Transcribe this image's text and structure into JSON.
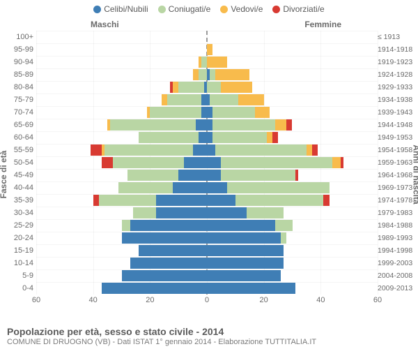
{
  "legend": [
    {
      "label": "Celibi/Nubili",
      "color": "#3f7eb5"
    },
    {
      "label": "Coniugati/e",
      "color": "#b9d6a4"
    },
    {
      "label": "Vedovi/e",
      "color": "#f8bb4c"
    },
    {
      "label": "Divorziati/e",
      "color": "#d83a32"
    }
  ],
  "side_labels": {
    "male": "Maschi",
    "female": "Femmine"
  },
  "axis_titles": {
    "left": "Fasce di età",
    "right": "Anni di nascita"
  },
  "x": {
    "max": 60,
    "ticks": [
      60,
      40,
      20,
      0,
      20,
      40,
      60
    ]
  },
  "rows": [
    {
      "age": "100+",
      "birth": "≤ 1913",
      "m": {
        "c": 0,
        "co": 0,
        "v": 0,
        "d": 0
      },
      "f": {
        "c": 0,
        "co": 0,
        "v": 0,
        "d": 0
      }
    },
    {
      "age": "95-99",
      "birth": "1914-1918",
      "m": {
        "c": 0,
        "co": 0,
        "v": 0,
        "d": 0
      },
      "f": {
        "c": 0,
        "co": 0,
        "v": 2,
        "d": 0
      }
    },
    {
      "age": "90-94",
      "birth": "1919-1923",
      "m": {
        "c": 0,
        "co": 2,
        "v": 1,
        "d": 0
      },
      "f": {
        "c": 0,
        "co": 0,
        "v": 7,
        "d": 0
      }
    },
    {
      "age": "85-89",
      "birth": "1924-1928",
      "m": {
        "c": 0,
        "co": 3,
        "v": 2,
        "d": 0
      },
      "f": {
        "c": 1,
        "co": 2,
        "v": 12,
        "d": 0
      }
    },
    {
      "age": "80-84",
      "birth": "1929-1933",
      "m": {
        "c": 1,
        "co": 9,
        "v": 2,
        "d": 1
      },
      "f": {
        "c": 0,
        "co": 5,
        "v": 11,
        "d": 0
      }
    },
    {
      "age": "75-79",
      "birth": "1934-1938",
      "m": {
        "c": 2,
        "co": 12,
        "v": 2,
        "d": 0
      },
      "f": {
        "c": 1,
        "co": 10,
        "v": 9,
        "d": 0
      }
    },
    {
      "age": "70-74",
      "birth": "1939-1943",
      "m": {
        "c": 2,
        "co": 18,
        "v": 1,
        "d": 0
      },
      "f": {
        "c": 2,
        "co": 15,
        "v": 5,
        "d": 0
      }
    },
    {
      "age": "65-69",
      "birth": "1944-1948",
      "m": {
        "c": 4,
        "co": 30,
        "v": 1,
        "d": 0
      },
      "f": {
        "c": 2,
        "co": 22,
        "v": 4,
        "d": 2
      }
    },
    {
      "age": "60-64",
      "birth": "1949-1953",
      "m": {
        "c": 3,
        "co": 21,
        "v": 0,
        "d": 0
      },
      "f": {
        "c": 2,
        "co": 19,
        "v": 2,
        "d": 2
      }
    },
    {
      "age": "55-59",
      "birth": "1954-1958",
      "m": {
        "c": 5,
        "co": 31,
        "v": 1,
        "d": 4
      },
      "f": {
        "c": 3,
        "co": 32,
        "v": 2,
        "d": 2
      }
    },
    {
      "age": "50-54",
      "birth": "1959-1963",
      "m": {
        "c": 8,
        "co": 25,
        "v": 0,
        "d": 4
      },
      "f": {
        "c": 5,
        "co": 39,
        "v": 3,
        "d": 1
      }
    },
    {
      "age": "45-49",
      "birth": "1964-1968",
      "m": {
        "c": 10,
        "co": 18,
        "v": 0,
        "d": 0
      },
      "f": {
        "c": 5,
        "co": 26,
        "v": 0,
        "d": 1
      }
    },
    {
      "age": "40-44",
      "birth": "1969-1973",
      "m": {
        "c": 12,
        "co": 19,
        "v": 0,
        "d": 0
      },
      "f": {
        "c": 7,
        "co": 36,
        "v": 0,
        "d": 0
      }
    },
    {
      "age": "35-39",
      "birth": "1974-1978",
      "m": {
        "c": 18,
        "co": 20,
        "v": 0,
        "d": 2
      },
      "f": {
        "c": 10,
        "co": 31,
        "v": 0,
        "d": 2
      }
    },
    {
      "age": "30-34",
      "birth": "1979-1983",
      "m": {
        "c": 18,
        "co": 8,
        "v": 0,
        "d": 0
      },
      "f": {
        "c": 14,
        "co": 13,
        "v": 0,
        "d": 0
      }
    },
    {
      "age": "25-29",
      "birth": "1984-1988",
      "m": {
        "c": 27,
        "co": 3,
        "v": 0,
        "d": 0
      },
      "f": {
        "c": 24,
        "co": 6,
        "v": 0,
        "d": 0
      }
    },
    {
      "age": "20-24",
      "birth": "1989-1993",
      "m": {
        "c": 30,
        "co": 0,
        "v": 0,
        "d": 0
      },
      "f": {
        "c": 26,
        "co": 2,
        "v": 0,
        "d": 0
      }
    },
    {
      "age": "15-19",
      "birth": "1994-1998",
      "m": {
        "c": 24,
        "co": 0,
        "v": 0,
        "d": 0
      },
      "f": {
        "c": 27,
        "co": 0,
        "v": 0,
        "d": 0
      }
    },
    {
      "age": "10-14",
      "birth": "1999-2003",
      "m": {
        "c": 27,
        "co": 0,
        "v": 0,
        "d": 0
      },
      "f": {
        "c": 27,
        "co": 0,
        "v": 0,
        "d": 0
      }
    },
    {
      "age": "5-9",
      "birth": "2004-2008",
      "m": {
        "c": 30,
        "co": 0,
        "v": 0,
        "d": 0
      },
      "f": {
        "c": 26,
        "co": 0,
        "v": 0,
        "d": 0
      }
    },
    {
      "age": "0-4",
      "birth": "2009-2013",
      "m": {
        "c": 37,
        "co": 0,
        "v": 0,
        "d": 0
      },
      "f": {
        "c": 31,
        "co": 0,
        "v": 0,
        "d": 0
      }
    }
  ],
  "colors": {
    "c": "#3f7eb5",
    "co": "#b9d6a4",
    "v": "#f8bb4c",
    "d": "#d83a32"
  },
  "footer": {
    "title": "Popolazione per età, sesso e stato civile - 2014",
    "sub": "COMUNE DI DRUOGNO (VB) - Dati ISTAT 1° gennaio 2014 - Elaborazione TUTTITALIA.IT"
  }
}
